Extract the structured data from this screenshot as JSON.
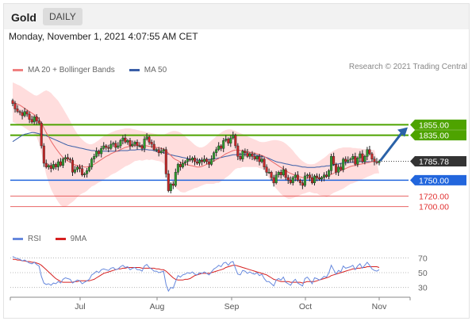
{
  "header": {
    "title": "Gold",
    "period": "DAILY",
    "timestamp": "Monday, November 1, 2021 4:07:55 AM CET"
  },
  "legend": {
    "ma_bollinger": "MA 20 + Bollinger Bands",
    "ma50": "MA 50",
    "rsi": "RSI",
    "rsi_ma": "9MA"
  },
  "copyright": "Research © 2021 Trading Central",
  "colors": {
    "bull_candle": "#2e9c2e",
    "bear_candle": "#c62828",
    "bollinger_fill": "#ffd7d7",
    "ma20": "#e96a6a",
    "ma50": "#3a5fa8",
    "resistance": "#4ea300",
    "pivot": "#2266dd",
    "support": "#e03030",
    "rsi": "#6688dd",
    "rsi_ma": "#d62020",
    "last_price": "#333333",
    "arrow": "#2a62a8"
  },
  "chart_data": [
    {
      "type": "candlestick",
      "x_tick_labels": [
        "Jul",
        "Aug",
        "Sep",
        "Oct",
        "Nov"
      ],
      "y_range": [
        1665,
        1935
      ],
      "price_levels": [
        {
          "value": 1855.0,
          "label": "1855.00",
          "kind": "resistance"
        },
        {
          "value": 1835.0,
          "label": "1835.00",
          "kind": "resistance"
        },
        {
          "value": 1785.78,
          "label": "1785.78",
          "kind": "last"
        },
        {
          "value": 1750.0,
          "label": "1750.00",
          "kind": "pivot"
        },
        {
          "value": 1720.0,
          "label": "1720.00",
          "kind": "support"
        },
        {
          "value": 1700.0,
          "label": "1700.00",
          "kind": "support"
        }
      ],
      "closes": [
        1895,
        1885,
        1880,
        1878,
        1872,
        1880,
        1875,
        1865,
        1860,
        1870,
        1862,
        1858,
        1815,
        1782,
        1775,
        1778,
        1772,
        1780,
        1775,
        1785,
        1778,
        1790,
        1793,
        1790,
        1788,
        1765,
        1770,
        1775,
        1772,
        1760,
        1762,
        1768,
        1775,
        1790,
        1795,
        1805,
        1800,
        1810,
        1815,
        1812,
        1810,
        1818,
        1820,
        1812,
        1815,
        1825,
        1830,
        1822,
        1825,
        1815,
        1818,
        1822,
        1815,
        1815,
        1810,
        1828,
        1832,
        1822,
        1818,
        1808,
        1808,
        1802,
        1805,
        1808,
        1762,
        1730,
        1743,
        1740,
        1765,
        1780,
        1775,
        1782,
        1785,
        1790,
        1788,
        1792,
        1785,
        1782,
        1788,
        1785,
        1790,
        1785,
        1780,
        1790,
        1802,
        1808,
        1815,
        1810,
        1825,
        1828,
        1820,
        1830,
        1835,
        1815,
        1795,
        1790,
        1805,
        1802,
        1795,
        1800,
        1795,
        1790,
        1795,
        1785,
        1790,
        1775,
        1765,
        1765,
        1755,
        1745,
        1760,
        1765,
        1760,
        1770,
        1755,
        1750,
        1745,
        1755,
        1760,
        1750,
        1745,
        1740,
        1758,
        1760,
        1755,
        1745,
        1758,
        1755,
        1752,
        1755,
        1760,
        1757,
        1768,
        1795,
        1780,
        1765,
        1775,
        1770,
        1790,
        1785,
        1788,
        1790,
        1795,
        1780,
        1792,
        1800,
        1785,
        1795,
        1808,
        1800,
        1790,
        1785,
        1783,
        1786
      ],
      "ma20": [
        1898,
        1896,
        1894,
        1892,
        1889,
        1886,
        1883,
        1880,
        1877,
        1874,
        1871,
        1866,
        1858,
        1849,
        1840,
        1832,
        1824,
        1817,
        1810,
        1804,
        1798,
        1793,
        1789,
        1786,
        1784,
        1781,
        1779,
        1778,
        1777,
        1776,
        1775,
        1775,
        1776,
        1778,
        1780,
        1783,
        1786,
        1789,
        1792,
        1795,
        1797,
        1800,
        1802,
        1804,
        1806,
        1808,
        1810,
        1812,
        1813,
        1814,
        1815,
        1816,
        1816,
        1816,
        1815,
        1815,
        1815,
        1814,
        1814,
        1813,
        1812,
        1811,
        1810,
        1809,
        1806,
        1801,
        1797,
        1792,
        1789,
        1787,
        1784,
        1782,
        1780,
        1779,
        1778,
        1777,
        1776,
        1775,
        1775,
        1776,
        1778,
        1780,
        1782,
        1784,
        1786,
        1789,
        1791,
        1794,
        1797,
        1800,
        1802,
        1804,
        1806,
        1807,
        1807,
        1806,
        1806,
        1805,
        1804,
        1803,
        1802,
        1801,
        1800,
        1798,
        1797,
        1795,
        1792,
        1789,
        1786,
        1783,
        1780,
        1777,
        1774,
        1771,
        1768,
        1765,
        1763,
        1761,
        1759,
        1757,
        1756,
        1755,
        1754,
        1754,
        1754,
        1753,
        1753,
        1754,
        1754,
        1755,
        1756,
        1757,
        1759,
        1761,
        1763,
        1765,
        1766,
        1768,
        1770,
        1772,
        1774,
        1776,
        1777,
        1778,
        1779,
        1780,
        1781,
        1782,
        1783,
        1784,
        1785,
        1785
      ],
      "bollinger_upper": [
        1935,
        1933,
        1931,
        1929,
        1926,
        1923,
        1920,
        1917,
        1914,
        1911,
        1910,
        1912,
        1915,
        1918,
        1920,
        1918,
        1915,
        1910,
        1905,
        1900,
        1893,
        1886,
        1878,
        1870,
        1862,
        1853,
        1845,
        1838,
        1832,
        1827,
        1823,
        1820,
        1818,
        1818,
        1820,
        1823,
        1826,
        1830,
        1833,
        1836,
        1838,
        1840,
        1842,
        1844,
        1845,
        1846,
        1847,
        1848,
        1848,
        1848,
        1847,
        1846,
        1845,
        1844,
        1843,
        1842,
        1841,
        1840,
        1839,
        1838,
        1837,
        1836,
        1835,
        1836,
        1838,
        1840,
        1842,
        1843,
        1843,
        1842,
        1840,
        1837,
        1833,
        1829,
        1825,
        1821,
        1817,
        1814,
        1812,
        1812,
        1814,
        1817,
        1821,
        1825,
        1829,
        1833,
        1837,
        1840,
        1843,
        1845,
        1846,
        1846,
        1845,
        1843,
        1841,
        1839,
        1837,
        1835,
        1833,
        1831,
        1829,
        1827,
        1825,
        1823,
        1822,
        1822,
        1823,
        1824,
        1825,
        1826,
        1826,
        1825,
        1824,
        1822,
        1819,
        1815,
        1811,
        1806,
        1800,
        1795,
        1790,
        1786,
        1783,
        1781,
        1780,
        1780,
        1781,
        1783,
        1786,
        1789,
        1792,
        1796,
        1800,
        1803,
        1806,
        1808,
        1810,
        1811,
        1812,
        1812,
        1812,
        1812,
        1811,
        1811,
        1810,
        1810,
        1809,
        1809,
        1808,
        1808,
        1807,
        1807
      ],
      "bollinger_lower": [
        1860,
        1858,
        1856,
        1854,
        1852,
        1849,
        1846,
        1843,
        1840,
        1837,
        1832,
        1820,
        1801,
        1780,
        1760,
        1746,
        1733,
        1724,
        1716,
        1709,
        1703,
        1700,
        1700,
        1702,
        1706,
        1709,
        1713,
        1718,
        1722,
        1725,
        1727,
        1730,
        1734,
        1738,
        1740,
        1743,
        1746,
        1748,
        1751,
        1754,
        1756,
        1760,
        1762,
        1764,
        1767,
        1770,
        1773,
        1776,
        1778,
        1780,
        1783,
        1786,
        1787,
        1788,
        1787,
        1788,
        1789,
        1788,
        1789,
        1788,
        1787,
        1786,
        1785,
        1782,
        1774,
        1762,
        1752,
        1741,
        1735,
        1732,
        1728,
        1727,
        1727,
        1729,
        1731,
        1733,
        1735,
        1736,
        1738,
        1740,
        1742,
        1743,
        1743,
        1743,
        1743,
        1745,
        1745,
        1748,
        1751,
        1755,
        1758,
        1762,
        1767,
        1771,
        1773,
        1773,
        1775,
        1775,
        1775,
        1775,
        1775,
        1775,
        1775,
        1773,
        1772,
        1768,
        1761,
        1754,
        1747,
        1740,
        1734,
        1729,
        1724,
        1720,
        1717,
        1715,
        1715,
        1716,
        1718,
        1719,
        1722,
        1724,
        1725,
        1727,
        1728,
        1726,
        1725,
        1725,
        1722,
        1721,
        1720,
        1718,
        1720,
        1723,
        1726,
        1728,
        1730,
        1732,
        1734,
        1737,
        1740,
        1743,
        1744,
        1746,
        1748,
        1750,
        1752,
        1754,
        1756,
        1758,
        1760,
        1762,
        1763,
        1763
      ],
      "ma50": [
        1823,
        1826,
        1829,
        1832,
        1835,
        1837,
        1838,
        1839,
        1840,
        1840,
        1839,
        1838,
        1837,
        1836,
        1834,
        1832,
        1830,
        1828,
        1826,
        1824,
        1822,
        1820,
        1818,
        1816,
        1815,
        1814,
        1813,
        1812,
        1811,
        1810,
        1809,
        1808,
        1807,
        1806,
        1806,
        1805,
        1805,
        1805,
        1805,
        1805,
        1805,
        1805,
        1805,
        1805,
        1805,
        1806,
        1806,
        1806,
        1806,
        1807,
        1807,
        1807,
        1808,
        1808,
        1808,
        1808,
        1808,
        1807,
        1807,
        1806,
        1805,
        1804,
        1803,
        1802,
        1801,
        1799,
        1798,
        1797,
        1796,
        1795,
        1794,
        1793,
        1792,
        1791,
        1790,
        1789,
        1789,
        1788,
        1788,
        1788,
        1788,
        1789,
        1789,
        1790,
        1791,
        1791,
        1792,
        1793,
        1794,
        1795,
        1796,
        1797,
        1798,
        1798,
        1799,
        1799,
        1799,
        1799,
        1799,
        1799,
        1798,
        1798,
        1797,
        1796,
        1795,
        1794,
        1793,
        1791,
        1789,
        1787,
        1785,
        1784,
        1783,
        1782,
        1781,
        1780,
        1779,
        1778,
        1778,
        1777,
        1776,
        1775,
        1775,
        1774,
        1774,
        1774,
        1774,
        1775,
        1775,
        1776,
        1776,
        1777,
        1777,
        1778,
        1779,
        1780,
        1781,
        1782,
        1782,
        1783,
        1783,
        1784,
        1784,
        1784,
        1785,
        1785,
        1785,
        1785,
        1785,
        1785,
        1785,
        1785
      ],
      "forecast_arrow": {
        "from": 1788,
        "to": 1850
      }
    },
    {
      "type": "line",
      "name": "RSI",
      "y_range": [
        20,
        80
      ],
      "y_ticks": [
        30,
        50,
        70
      ],
      "rsi": [
        72,
        70,
        69,
        68,
        66,
        67,
        65,
        63,
        62,
        64,
        61,
        59,
        45,
        36,
        34,
        35,
        33,
        36,
        35,
        38,
        36,
        41,
        43,
        42,
        41,
        36,
        38,
        40,
        39,
        35,
        37,
        39,
        41,
        47,
        49,
        52,
        50,
        54,
        55,
        54,
        53,
        56,
        57,
        54,
        55,
        58,
        60,
        57,
        58,
        54,
        56,
        57,
        54,
        54,
        52,
        59,
        61,
        57,
        55,
        52,
        52,
        50,
        51,
        52,
        34,
        25,
        30,
        29,
        38,
        46,
        44,
        47,
        48,
        50,
        49,
        51,
        48,
        47,
        50,
        49,
        51,
        49,
        47,
        51,
        55,
        57,
        60,
        58,
        63,
        64,
        60,
        64,
        65,
        56,
        48,
        47,
        53,
        52,
        49,
        51,
        49,
        48,
        50,
        46,
        48,
        42,
        38,
        38,
        35,
        32,
        40,
        42,
        40,
        44,
        37,
        35,
        33,
        38,
        41,
        36,
        34,
        32,
        42,
        44,
        40,
        35,
        43,
        42,
        40,
        42,
        45,
        44,
        50,
        60,
        54,
        48,
        53,
        51,
        59,
        56,
        57,
        58,
        60,
        54,
        59,
        62,
        56,
        60,
        64,
        60,
        55,
        53,
        52,
        54
      ],
      "rsi_ma": [
        68,
        68,
        67,
        67,
        66,
        66,
        65,
        65,
        64,
        64,
        63,
        62,
        60,
        57,
        54,
        51,
        48,
        45,
        42,
        40,
        38,
        37,
        37,
        37,
        37,
        37,
        38,
        38,
        39,
        39,
        39,
        39,
        39,
        40,
        41,
        43,
        45,
        47,
        49,
        50,
        51,
        52,
        53,
        54,
        55,
        55,
        56,
        56,
        57,
        57,
        57,
        57,
        57,
        57,
        56,
        56,
        56,
        56,
        56,
        56,
        55,
        55,
        54,
        54,
        52,
        49,
        46,
        43,
        41,
        40,
        40,
        40,
        41,
        41,
        42,
        44,
        46,
        47,
        48,
        49,
        49,
        49,
        49,
        50,
        51,
        52,
        53,
        54,
        55,
        57,
        58,
        59,
        60,
        60,
        59,
        58,
        57,
        56,
        55,
        54,
        53,
        52,
        51,
        50,
        49,
        48,
        47,
        45,
        43,
        41,
        40,
        39,
        38,
        38,
        38,
        38,
        37,
        37,
        37,
        37,
        37,
        36,
        37,
        38,
        38,
        38,
        38,
        39,
        40,
        41,
        42,
        43,
        44,
        46,
        47,
        48,
        49,
        50,
        51,
        52,
        53,
        54,
        55,
        55,
        56,
        56,
        57,
        57,
        58,
        58,
        58,
        58,
        58,
        57
      ]
    }
  ]
}
